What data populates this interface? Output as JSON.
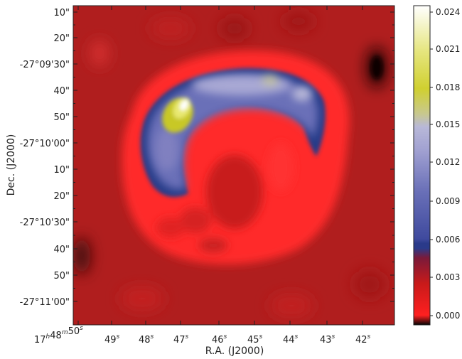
{
  "axes": {
    "xlabel": "R.A. (J2000)",
    "ylabel": "Dec. (J2000)",
    "x_ticks": [
      {
        "main": "17",
        "sup1": "h",
        "mid": "48",
        "sup2": "m",
        "rest": "50",
        "sup3": "s"
      },
      {
        "main": "49",
        "sup": "s"
      },
      {
        "main": "48",
        "sup": "s"
      },
      {
        "main": "47",
        "sup": "s"
      },
      {
        "main": "46",
        "sup": "s"
      },
      {
        "main": "45",
        "sup": "s"
      },
      {
        "main": "44",
        "sup": "s"
      },
      {
        "main": "43",
        "sup": "s"
      },
      {
        "main": "42",
        "sup": "s"
      }
    ],
    "y_ticks": [
      "10\"",
      "20\"",
      "-27°09'30\"",
      "40\"",
      "50\"",
      "-27°10'00\"",
      "10\"",
      "20\"",
      "-27°10'30\"",
      "40\"",
      "50\"",
      "-27°11'00\""
    ]
  },
  "colorbar": {
    "ticks": [
      "0.024",
      "0.021",
      "0.018",
      "0.015",
      "0.012",
      "0.009",
      "0.006",
      "0.003",
      "0.000"
    ],
    "colors": [
      "#050505",
      "#ff2020",
      "#b01010",
      "#2a3a8a",
      "#4c58a8",
      "#8a8cc8",
      "#b4b4d8",
      "#c0c070",
      "#d0d018",
      "#ffffff"
    ]
  }
}
